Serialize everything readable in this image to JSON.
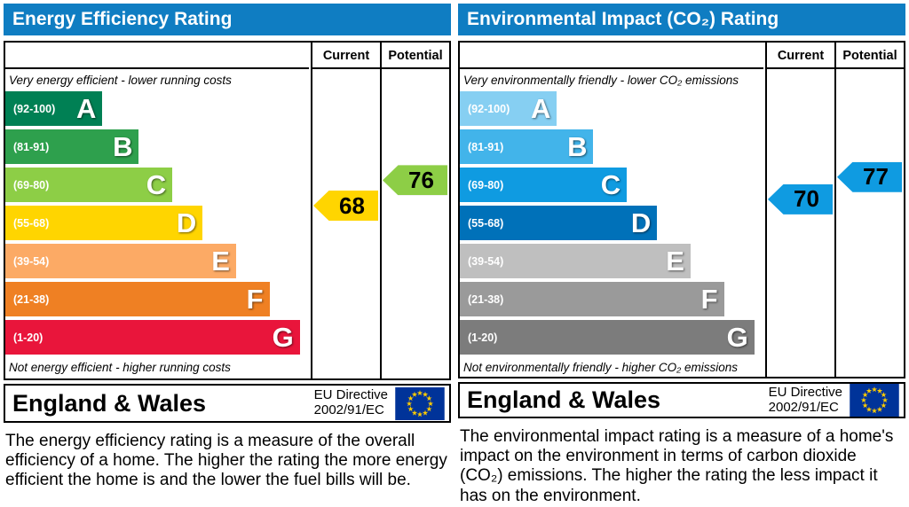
{
  "theme": {
    "header_bg": "#0f7dc2",
    "eu_flag_bg": "#003399",
    "eu_star_color": "#ffcc00"
  },
  "chart_data": [
    {
      "type": "bar",
      "title": "Energy Efficiency Rating",
      "columns": [
        "Current",
        "Potential"
      ],
      "top_caption": "Very energy efficient - lower running costs",
      "bottom_caption": "Not energy efficient - higher running costs",
      "bands": [
        {
          "label": "(92-100)",
          "letter": "A",
          "lo": 92,
          "hi": 100,
          "color": "#008054",
          "bar_width": "32%"
        },
        {
          "label": "(81-91)",
          "letter": "B",
          "lo": 81,
          "hi": 91,
          "color": "#2ea04d",
          "bar_width": "44%"
        },
        {
          "label": "(69-80)",
          "letter": "C",
          "lo": 69,
          "hi": 80,
          "color": "#8dce46",
          "bar_width": "55%"
        },
        {
          "label": "(55-68)",
          "letter": "D",
          "lo": 55,
          "hi": 68,
          "color": "#ffd500",
          "bar_width": "65%"
        },
        {
          "label": "(39-54)",
          "letter": "E",
          "lo": 39,
          "hi": 54,
          "color": "#fcaa65",
          "bar_width": "76%"
        },
        {
          "label": "(21-38)",
          "letter": "F",
          "lo": 21,
          "hi": 38,
          "color": "#ef8023",
          "bar_width": "87%"
        },
        {
          "label": "(1-20)",
          "letter": "G",
          "lo": 1,
          "hi": 20,
          "color": "#e9153b",
          "bar_width": "97%"
        }
      ],
      "current": {
        "value": 68,
        "color": "#ffd500"
      },
      "potential": {
        "value": 76,
        "color": "#8dce46"
      },
      "footer": {
        "region": "England & Wales",
        "directive_line1": "EU Directive",
        "directive_line2": "2002/91/EC"
      },
      "description": "The energy efficiency rating is a measure of the overall efficiency of a home. The higher the rating the more energy efficient the home is and the lower the fuel bills will be."
    },
    {
      "type": "bar",
      "title": "Environmental Impact (CO₂) Rating",
      "columns": [
        "Current",
        "Potential"
      ],
      "top_caption": "Very environmentally friendly - lower CO₂ emissions",
      "bottom_caption": "Not environmentally friendly - higher CO₂ emissions",
      "bands": [
        {
          "label": "(92-100)",
          "letter": "A",
          "lo": 92,
          "hi": 100,
          "color": "#86cff2",
          "bar_width": "32%"
        },
        {
          "label": "(81-91)",
          "letter": "B",
          "lo": 81,
          "hi": 91,
          "color": "#42b4ea",
          "bar_width": "44%"
        },
        {
          "label": "(69-80)",
          "letter": "C",
          "lo": 69,
          "hi": 80,
          "color": "#0f9be1",
          "bar_width": "55%"
        },
        {
          "label": "(55-68)",
          "letter": "D",
          "lo": 55,
          "hi": 68,
          "color": "#0071b9",
          "bar_width": "65%"
        },
        {
          "label": "(39-54)",
          "letter": "E",
          "lo": 39,
          "hi": 54,
          "color": "#bfbfbf",
          "bar_width": "76%"
        },
        {
          "label": "(21-38)",
          "letter": "F",
          "lo": 21,
          "hi": 38,
          "color": "#9a9a9a",
          "bar_width": "87%"
        },
        {
          "label": "(1-20)",
          "letter": "G",
          "lo": 1,
          "hi": 20,
          "color": "#7c7c7c",
          "bar_width": "97%"
        }
      ],
      "current": {
        "value": 70,
        "color": "#0f9be1"
      },
      "potential": {
        "value": 77,
        "color": "#0f9be1"
      },
      "footer": {
        "region": "England & Wales",
        "directive_line1": "EU Directive",
        "directive_line2": "2002/91/EC"
      },
      "description": "The environmental impact rating is a measure of a home's impact on the environment in terms of carbon dioxide (CO₂) emissions. The higher the rating the less impact it has on the environment."
    }
  ]
}
